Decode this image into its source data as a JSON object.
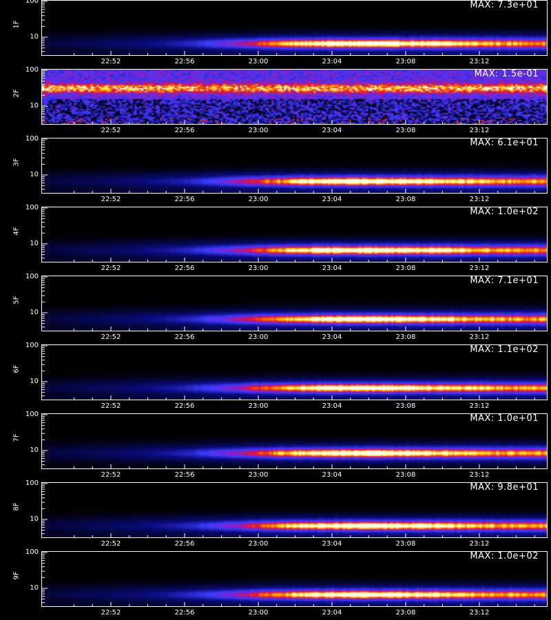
{
  "chart_data": {
    "type": "heatmap",
    "x_ticks": [
      "22:52",
      "22:56",
      "23:00",
      "23:04",
      "23:08",
      "23:12"
    ],
    "y_ticks": [
      "10",
      "100"
    ],
    "panels": [
      {
        "label": "1F",
        "max_label": "MAX: 7.3e+01",
        "peak": 73,
        "band": 0.8,
        "style": "smooth"
      },
      {
        "label": "2F",
        "max_label": "MAX: 1.5e-01",
        "peak": 0.15,
        "band": 0.35,
        "style": "noise"
      },
      {
        "label": "3F",
        "max_label": "MAX: 6.1e+01",
        "peak": 61,
        "band": 0.8,
        "style": "smooth"
      },
      {
        "label": "4F",
        "max_label": "MAX: 1.0e+02",
        "peak": 100,
        "band": 0.8,
        "style": "smooth"
      },
      {
        "label": "5F",
        "max_label": "MAX: 7.1e+01",
        "peak": 71,
        "band": 0.8,
        "style": "smooth"
      },
      {
        "label": "6F",
        "max_label": "MAX: 1.1e+02",
        "peak": 110,
        "band": 0.8,
        "style": "smooth"
      },
      {
        "label": "7F",
        "max_label": "MAX: 1.0e+01",
        "peak": 10,
        "band": 0.73,
        "style": "smooth"
      },
      {
        "label": "8F",
        "max_label": "MAX: 9.8e+01",
        "peak": 98,
        "band": 0.8,
        "style": "smooth"
      },
      {
        "label": "9F",
        "max_label": "MAX: 1.0e+02",
        "peak": 100,
        "band": 0.8,
        "style": "smooth"
      }
    ]
  }
}
